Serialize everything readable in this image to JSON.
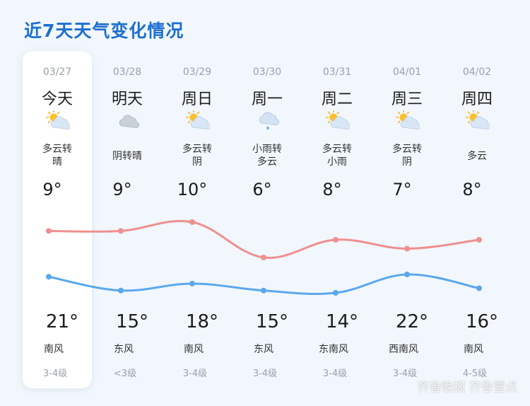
{
  "title": "近7天天气变化情况",
  "watermark": "齐鲁晚报 齐鲁壹点",
  "colors": {
    "high_line": "#f08f8f",
    "low_line": "#5aa8ee",
    "title": "#1e6fd0"
  },
  "days": [
    {
      "date": "03/27",
      "name": "今天",
      "icon": "partly-cloudy-icon",
      "cond": [
        "多云转",
        "晴"
      ],
      "high": "9°",
      "low": "21°",
      "wind": "南风",
      "level": "3-4级"
    },
    {
      "date": "03/28",
      "name": "明天",
      "icon": "overcast-icon",
      "cond": [
        "阴转晴"
      ],
      "high": "9°",
      "low": "15°",
      "wind": "东风",
      "level": "<3级"
    },
    {
      "date": "03/29",
      "name": "周日",
      "icon": "partly-cloudy-icon",
      "cond": [
        "多云转",
        "阴"
      ],
      "high": "10°",
      "low": "18°",
      "wind": "南风",
      "level": "3-4级"
    },
    {
      "date": "03/30",
      "name": "周一",
      "icon": "light-rain-icon",
      "cond": [
        "小雨转",
        "多云"
      ],
      "high": "6°",
      "low": "15°",
      "wind": "东风",
      "level": "3-4级"
    },
    {
      "date": "03/31",
      "name": "周二",
      "icon": "partly-cloudy-icon",
      "cond": [
        "多云转",
        "小雨"
      ],
      "high": "8°",
      "low": "14°",
      "wind": "东南风",
      "level": "3-4级"
    },
    {
      "date": "04/01",
      "name": "周三",
      "icon": "partly-cloudy-icon",
      "cond": [
        "多云转",
        "阴"
      ],
      "high": "7°",
      "low": "22°",
      "wind": "西南风",
      "level": "3-4级"
    },
    {
      "date": "04/02",
      "name": "周四",
      "icon": "partly-cloudy-icon",
      "cond": [
        "多云"
      ],
      "high": "8°",
      "low": "16°",
      "wind": "南风",
      "level": "4-5级"
    }
  ],
  "chart_data": {
    "type": "line",
    "x": [
      "03/27",
      "03/28",
      "03/29",
      "03/30",
      "03/31",
      "04/01",
      "04/02"
    ],
    "series": [
      {
        "values": [
          9,
          9,
          10,
          6,
          8,
          7,
          8
        ]
      },
      {
        "values": [
          21,
          15,
          18,
          15,
          14,
          22,
          16
        ]
      }
    ]
  }
}
